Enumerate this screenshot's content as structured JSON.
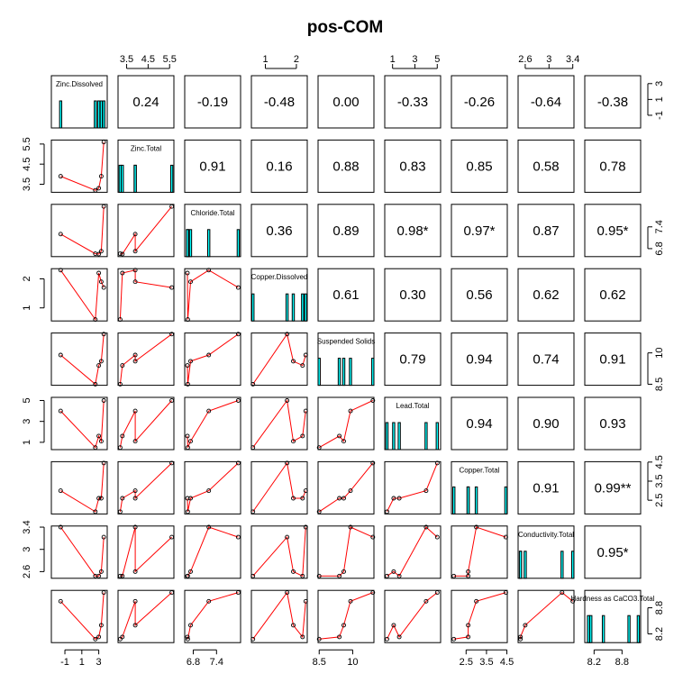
{
  "title": "pos-COM",
  "chart_data": {
    "type": "scatter-matrix",
    "title": "pos-COM",
    "variables": [
      {
        "name": "Zinc.Dissolved",
        "range": [
          -2.6,
          4.0
        ],
        "ticks": [
          -1,
          1,
          3
        ],
        "values": [
          -1.5,
          2.6,
          3.0,
          3.3,
          3.6
        ]
      },
      {
        "name": "Zinc.Total",
        "range": [
          3.1,
          5.7
        ],
        "ticks": [
          3.5,
          4.5,
          5.5
        ],
        "values": [
          3.9,
          3.2,
          3.3,
          3.9,
          5.6
        ]
      },
      {
        "name": "Chloride.Total",
        "range": [
          6.58,
          8.02
        ],
        "ticks": [
          6.8,
          7.4
        ],
        "values": [
          7.2,
          6.66,
          6.65,
          6.73,
          7.96
        ]
      },
      {
        "name": "Copper.Dissolved",
        "range": [
          0.55,
          2.35
        ],
        "ticks": [
          1.0,
          2.0
        ],
        "values": [
          2.3,
          0.6,
          2.2,
          1.9,
          1.7
        ]
      },
      {
        "name": "Suspended Solids",
        "range": [
          8.45,
          10.95
        ],
        "ticks": [
          8.5,
          10.0
        ],
        "values": [
          9.9,
          8.5,
          9.4,
          9.6,
          10.9
        ]
      },
      {
        "name": "Lead.Total",
        "range": [
          0.3,
          5.3
        ],
        "ticks": [
          1,
          3,
          5
        ],
        "values": [
          4.0,
          0.5,
          1.6,
          1.1,
          5.0
        ]
      },
      {
        "name": "Copper.Total",
        "range": [
          1.78,
          4.52
        ],
        "ticks": [
          2.5,
          3.5,
          4.5
        ],
        "values": [
          3.0,
          1.9,
          2.6,
          2.6,
          4.45
        ]
      },
      {
        "name": "Conductivity.Total",
        "range": [
          2.48,
          3.42
        ],
        "ticks": [
          2.6,
          3.0,
          3.4
        ],
        "values": [
          3.4,
          2.52,
          2.52,
          2.6,
          3.22
        ]
      },
      {
        "name": "Hardness as CaCO3.Total",
        "range": [
          8.0,
          9.2
        ],
        "ticks": [
          8.2,
          8.8
        ],
        "values": [
          8.95,
          8.08,
          8.13,
          8.4,
          9.15
        ]
      }
    ],
    "top_axes": {
      "1": [
        3.5,
        4.5,
        5.5
      ],
      "3": [
        1.0,
        2.0
      ],
      "5": [
        1,
        3,
        5
      ],
      "7": [
        2.6,
        3.0,
        3.4
      ]
    },
    "bottom_axes": {
      "0": [
        -1,
        1,
        3
      ],
      "2": [
        6.8,
        7.4
      ],
      "4": [
        8.5,
        10.0
      ],
      "6": [
        2.5,
        3.5,
        4.5
      ],
      "8": [
        8.2,
        8.8
      ]
    },
    "left_axes": {
      "1": [
        3.5,
        4.5,
        5.5
      ],
      "3": [
        1.0,
        2.0
      ],
      "5": [
        1,
        3,
        5
      ],
      "7": [
        2.6,
        3.0,
        3.4
      ]
    },
    "right_axes": {
      "0": [
        -1,
        1,
        3
      ],
      "2": [
        6.8,
        7.4
      ],
      "4": [
        8.5,
        10.0
      ],
      "6": [
        2.5,
        3.5,
        4.5
      ],
      "8": [
        8.2,
        8.8
      ]
    },
    "correlations": [
      {
        "row": 0,
        "col": 1,
        "label": "0.24"
      },
      {
        "row": 0,
        "col": 2,
        "label": "-0.19"
      },
      {
        "row": 0,
        "col": 3,
        "label": "-0.48"
      },
      {
        "row": 0,
        "col": 4,
        "label": "0.00"
      },
      {
        "row": 0,
        "col": 5,
        "label": "-0.33"
      },
      {
        "row": 0,
        "col": 6,
        "label": "-0.26"
      },
      {
        "row": 0,
        "col": 7,
        "label": "-0.64"
      },
      {
        "row": 0,
        "col": 8,
        "label": "-0.38"
      },
      {
        "row": 1,
        "col": 2,
        "label": "0.91"
      },
      {
        "row": 1,
        "col": 3,
        "label": "0.16"
      },
      {
        "row": 1,
        "col": 4,
        "label": "0.88"
      },
      {
        "row": 1,
        "col": 5,
        "label": "0.83"
      },
      {
        "row": 1,
        "col": 6,
        "label": "0.85"
      },
      {
        "row": 1,
        "col": 7,
        "label": "0.58"
      },
      {
        "row": 1,
        "col": 8,
        "label": "0.78"
      },
      {
        "row": 2,
        "col": 3,
        "label": "0.36"
      },
      {
        "row": 2,
        "col": 4,
        "label": "0.89"
      },
      {
        "row": 2,
        "col": 5,
        "label": "0.98*"
      },
      {
        "row": 2,
        "col": 6,
        "label": "0.97*"
      },
      {
        "row": 2,
        "col": 7,
        "label": "0.87"
      },
      {
        "row": 2,
        "col": 8,
        "label": "0.95*"
      },
      {
        "row": 3,
        "col": 4,
        "label": "0.61"
      },
      {
        "row": 3,
        "col": 5,
        "label": "0.30"
      },
      {
        "row": 3,
        "col": 6,
        "label": "0.56"
      },
      {
        "row": 3,
        "col": 7,
        "label": "0.62"
      },
      {
        "row": 3,
        "col": 8,
        "label": "0.62"
      },
      {
        "row": 4,
        "col": 5,
        "label": "0.79"
      },
      {
        "row": 4,
        "col": 6,
        "label": "0.94"
      },
      {
        "row": 4,
        "col": 7,
        "label": "0.74"
      },
      {
        "row": 4,
        "col": 8,
        "label": "0.91"
      },
      {
        "row": 5,
        "col": 6,
        "label": "0.94"
      },
      {
        "row": 5,
        "col": 7,
        "label": "0.90"
      },
      {
        "row": 5,
        "col": 8,
        "label": "0.93"
      },
      {
        "row": 6,
        "col": 7,
        "label": "0.91"
      },
      {
        "row": 6,
        "col": 8,
        "label": "0.99**"
      },
      {
        "row": 7,
        "col": 8,
        "label": "0.95*"
      }
    ],
    "colors": {
      "frame": "#000000",
      "line": "#ff0000",
      "point": "#000000",
      "rug": "#000000",
      "hist_fill": "#00ffff",
      "background": "#ffffff"
    }
  }
}
